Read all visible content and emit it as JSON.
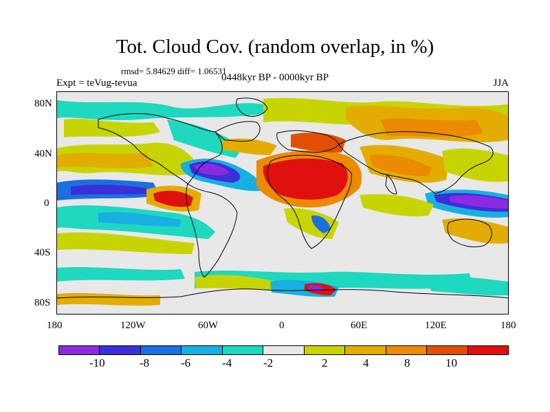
{
  "title": "Tot. Cloud Cov. (random overlap, in %)",
  "stats": "rmsd= 5.84629  diff= 1.06531",
  "expt": "Expt = teVug-tevua",
  "period": "0448kyr BP - 0000kyr BP",
  "season": "JJA",
  "lat_labels": [
    "80N",
    "40N",
    "0",
    "40S",
    "80S"
  ],
  "lon_labels": [
    "180",
    "120W",
    "60W",
    "0",
    "60E",
    "120E",
    "180"
  ],
  "colorbar": {
    "colors": [
      "#8a2be2",
      "#3b2fd8",
      "#1c6fe0",
      "#17b0e0",
      "#1ed8c0",
      "#e8e8e8",
      "#c8d400",
      "#e3ad00",
      "#ec8a00",
      "#e05000",
      "#e01010"
    ],
    "labels": [
      "-10",
      "-8",
      "-6",
      "-4",
      "-2",
      "2",
      "4",
      "8",
      "10"
    ]
  }
}
